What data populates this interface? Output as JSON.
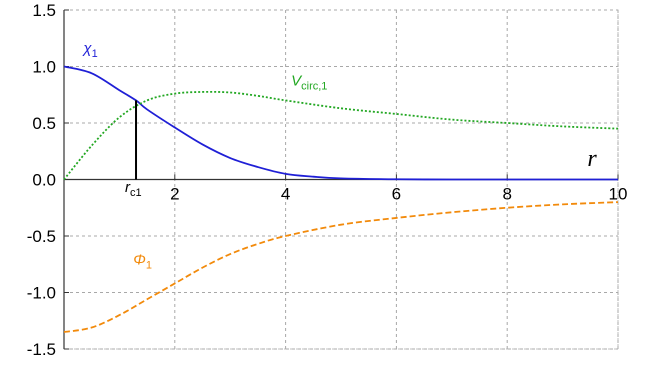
{
  "chart_data": {
    "type": "line",
    "xlabel": "r",
    "ylabel": "",
    "xlim": [
      0,
      10
    ],
    "ylim": [
      -1.5,
      1.5
    ],
    "grid": true,
    "legend": "none",
    "x_ticks": [
      2,
      4,
      6,
      8,
      10
    ],
    "x_tick_labels": [
      "2",
      "4",
      "6",
      "8",
      "10"
    ],
    "y_ticks": [
      1.5,
      1.0,
      0.5,
      0.0,
      -0.5,
      -1.0,
      -1.5
    ],
    "y_tick_labels": [
      "1.5",
      "1.0",
      "0.5",
      "0.0",
      "-0.5",
      "-1.0",
      "-1.5"
    ],
    "series": [
      {
        "name": "χ1",
        "color": "#1f1fd6",
        "style": "solid",
        "x": [
          0,
          0.5,
          1.0,
          1.3,
          1.5,
          2.0,
          2.5,
          3.0,
          3.5,
          4.0,
          4.5,
          5.0,
          6.0,
          7.0,
          8.0,
          10.0
        ],
        "y": [
          1.0,
          0.94,
          0.79,
          0.7,
          0.62,
          0.46,
          0.31,
          0.19,
          0.11,
          0.05,
          0.025,
          0.01,
          0.002,
          0.0,
          0.0,
          0.0
        ]
      },
      {
        "name": "Vcirc,1",
        "color": "#22a722",
        "style": "dotted",
        "x": [
          0,
          0.5,
          1.0,
          1.5,
          2.0,
          2.5,
          3.0,
          3.5,
          4.0,
          5.0,
          6.0,
          7.0,
          8.0,
          9.0,
          10.0
        ],
        "y": [
          0.0,
          0.3,
          0.55,
          0.7,
          0.76,
          0.775,
          0.77,
          0.74,
          0.7,
          0.63,
          0.58,
          0.53,
          0.5,
          0.47,
          0.45
        ]
      },
      {
        "name": "Φ1",
        "color": "#f28a0b",
        "style": "dashed",
        "x": [
          0,
          0.5,
          1.0,
          1.5,
          2.0,
          2.5,
          3.0,
          3.5,
          4.0,
          5.0,
          6.0,
          7.0,
          8.0,
          9.0,
          10.0
        ],
        "y": [
          -1.35,
          -1.31,
          -1.2,
          -1.06,
          -0.92,
          -0.78,
          -0.66,
          -0.57,
          -0.5,
          -0.4,
          -0.34,
          -0.29,
          -0.25,
          -0.22,
          -0.2
        ]
      }
    ],
    "annotations": [
      {
        "text": "χ",
        "sub": "1",
        "x": 0.35,
        "y": 1.12,
        "color": "#1f1fd6"
      },
      {
        "text": "V",
        "sub": "circ,1",
        "x": 4.1,
        "y": 0.83,
        "color": "#22a722"
      },
      {
        "text": "Φ",
        "sub": "1",
        "x": 1.25,
        "y": -0.75,
        "color": "#f28a0b"
      },
      {
        "text": "r",
        "sub": "c1",
        "x": 1.1,
        "y": -0.11,
        "color": "#000000"
      }
    ],
    "vertical_marker": {
      "x": 1.3,
      "y_top": 0.7,
      "color": "#000000"
    }
  }
}
